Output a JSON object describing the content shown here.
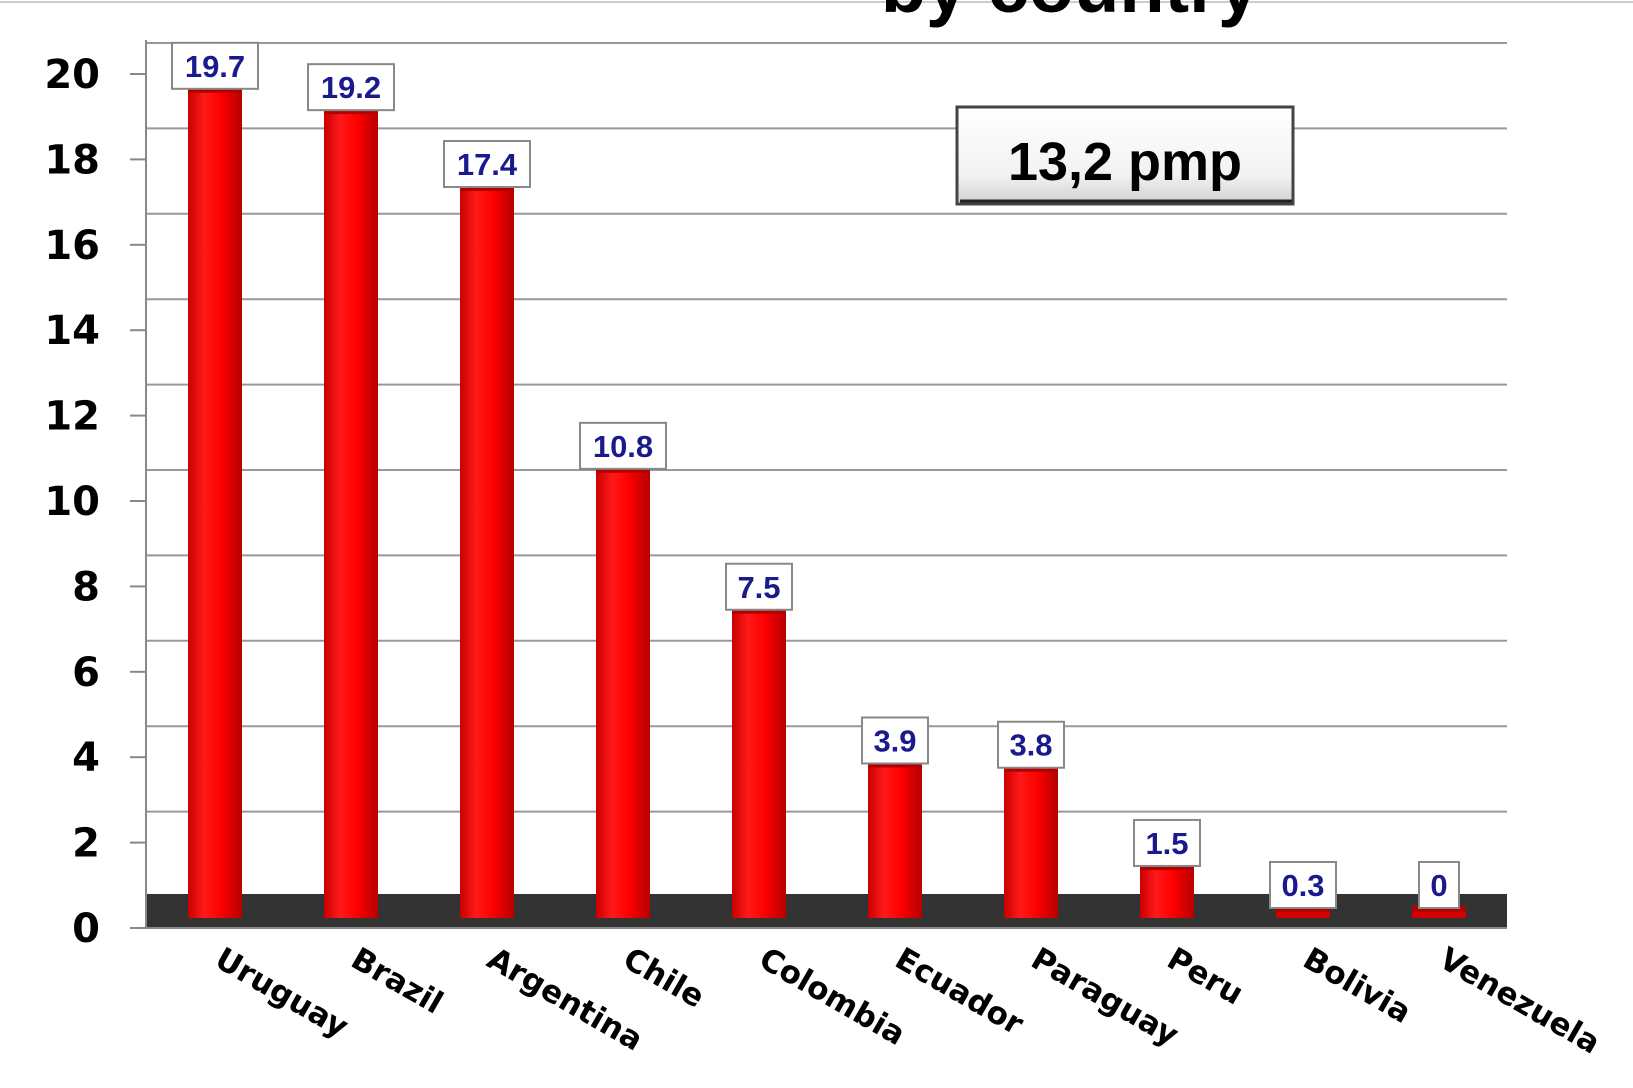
{
  "chart_data": {
    "type": "bar",
    "title": "by country",
    "categories": [
      "Uruguay",
      "Brazil",
      "Argentina",
      "Chile",
      "Colombia",
      "Ecuador",
      "Paraguay",
      "Peru",
      "Bolivia",
      "Venezuela"
    ],
    "values": [
      19.7,
      19.2,
      17.4,
      10.8,
      7.5,
      3.9,
      3.8,
      1.5,
      0.3,
      0
    ],
    "value_labels": [
      "19.7",
      "19.2",
      "17.4",
      "10.8",
      "7.5",
      "3.9",
      "3.8",
      "1.5",
      "0.3",
      "0"
    ],
    "yticks": [
      0,
      2,
      4,
      6,
      8,
      10,
      12,
      14,
      16,
      18,
      20
    ],
    "ylim": [
      0,
      21
    ],
    "grid": true,
    "annotation": "13,2  pmp",
    "colors": {
      "bar": "#ff0000",
      "bar_dark": "#b30000",
      "floor": "#333333",
      "label_text": "#1a1a8c"
    }
  }
}
